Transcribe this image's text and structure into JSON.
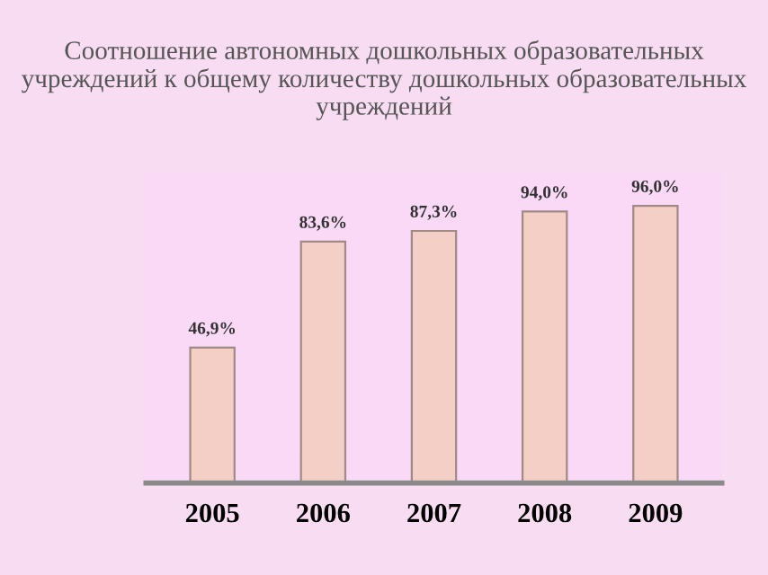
{
  "chart_data": {
    "type": "bar",
    "title": "Соотношение автономных дошкольных образовательных учреждений к общему количеству дошкольных образовательных учреждений",
    "categories": [
      "2005",
      "2006",
      "2007",
      "2008",
      "2009"
    ],
    "values": [
      46.9,
      83.6,
      87.3,
      94.0,
      96.0
    ],
    "value_labels": [
      "46,9%",
      "83,6%",
      "87,3%",
      "94,0%",
      "96,0%"
    ],
    "color": "#f3cfc6",
    "grid": false,
    "legend": false
  }
}
